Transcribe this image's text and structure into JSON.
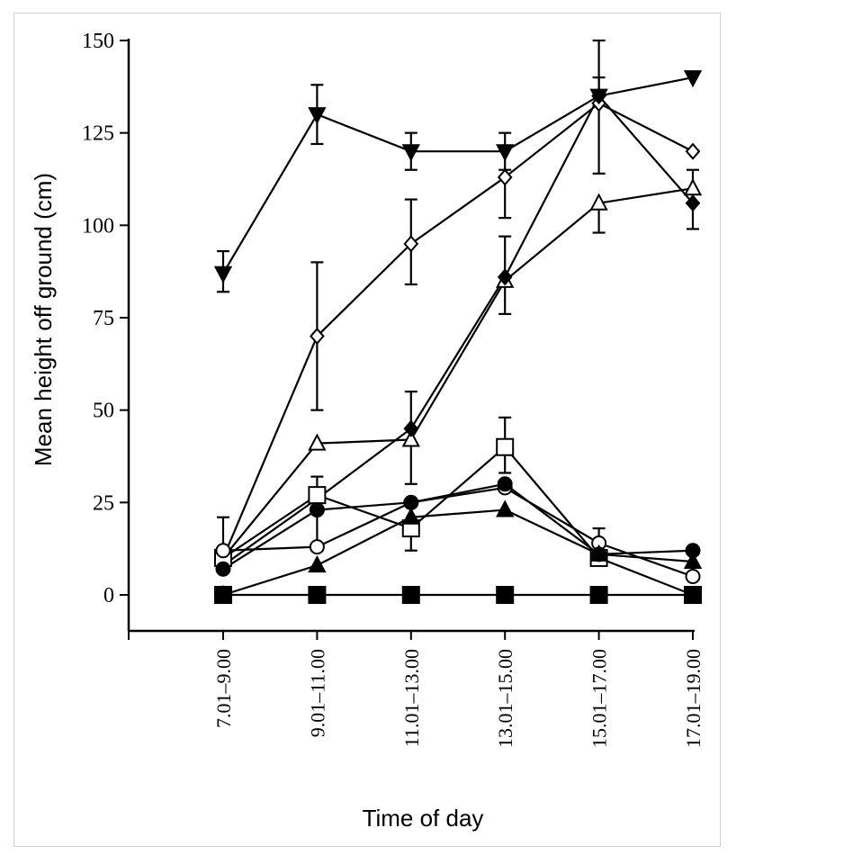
{
  "chart_data": {
    "type": "line",
    "title": "",
    "xlabel": "Time of day",
    "ylabel": "Mean height off ground (cm)",
    "categories": [
      "7.01–9.00",
      "9.01–11.00",
      "11.01–13.00",
      "13.01–15.00",
      "15.01–17.00",
      "17.01–19.00"
    ],
    "ylim": [
      -10,
      150
    ],
    "yticks": [
      0,
      25,
      50,
      75,
      100,
      125,
      150
    ],
    "ytick_labels": [
      "0",
      "25",
      "50",
      "75",
      "100",
      "125",
      "150"
    ],
    "grid": false,
    "legend": "none",
    "series": [
      {
        "marker": "triangle-down-filled",
        "values": [
          87,
          130,
          120,
          120,
          135,
          140
        ],
        "err_upper": [
          93,
          138,
          125,
          125,
          140,
          null
        ],
        "err_lower": [
          82,
          122,
          115,
          115,
          null,
          null
        ]
      },
      {
        "marker": "diamond-open",
        "values": [
          10,
          70,
          95,
          113,
          133,
          120
        ],
        "err_upper": [
          null,
          90,
          107,
          null,
          150,
          null
        ],
        "err_lower": [
          null,
          50,
          84,
          102,
          114,
          null
        ]
      },
      {
        "marker": "triangle-up-open",
        "values": [
          10,
          41,
          42,
          85,
          106,
          110
        ],
        "err_upper": [
          null,
          null,
          55,
          97,
          null,
          115
        ],
        "err_lower": [
          null,
          null,
          30,
          76,
          98,
          null
        ]
      },
      {
        "marker": "diamond-filled",
        "values": [
          8,
          26,
          45,
          86,
          135,
          106
        ],
        "err_upper": [
          null,
          null,
          null,
          null,
          null,
          null
        ],
        "err_lower": [
          null,
          null,
          null,
          null,
          null,
          99
        ]
      },
      {
        "marker": "square-open",
        "values": [
          10,
          27,
          18,
          40,
          10,
          0
        ],
        "err_upper": [
          21,
          null,
          null,
          48,
          null,
          null
        ],
        "err_lower": [
          null,
          null,
          12,
          33,
          null,
          null
        ]
      },
      {
        "marker": "circle-open",
        "values": [
          12,
          13,
          25,
          29,
          14,
          5
        ],
        "err_upper": [
          null,
          32,
          null,
          null,
          18,
          null
        ],
        "err_lower": [
          null,
          null,
          null,
          null,
          null,
          null
        ]
      },
      {
        "marker": "circle-filled",
        "values": [
          7,
          23,
          25,
          30,
          11,
          12
        ],
        "err_upper": [
          null,
          null,
          null,
          null,
          null,
          null
        ],
        "err_lower": [
          null,
          null,
          null,
          null,
          null,
          null
        ]
      },
      {
        "marker": "triangle-up-filled",
        "values": [
          0,
          8,
          21,
          23,
          11,
          9
        ],
        "err_upper": [
          null,
          null,
          null,
          null,
          null,
          null
        ],
        "err_lower": [
          null,
          null,
          null,
          null,
          null,
          null
        ]
      },
      {
        "marker": "square-filled",
        "values": [
          0,
          0,
          0,
          0,
          0,
          0
        ],
        "err_upper": [
          null,
          null,
          null,
          null,
          null,
          null
        ],
        "err_lower": [
          null,
          null,
          null,
          null,
          null,
          null
        ]
      }
    ]
  }
}
